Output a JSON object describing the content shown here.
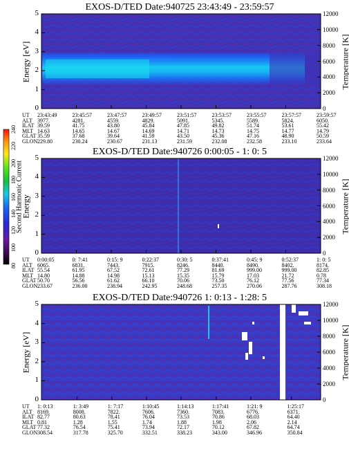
{
  "chart_data": [
    {
      "type": "heatmap",
      "title": "EXOS-D/TED   Date:940725  23:43:49 - 23:59:57",
      "ylabel": "Energy [eV]",
      "y2label": "Temperature [K]",
      "ylim": [
        0,
        5
      ],
      "y2lim": [
        0,
        12000
      ],
      "yticks": [
        "0",
        "1",
        "2",
        "3",
        "4",
        "5"
      ],
      "y2ticks": [
        "0",
        "2000",
        "4000",
        "6000",
        "8000",
        "10000",
        "12000"
      ],
      "ephemeris": {
        "labels": [
          "UT",
          "ALT",
          "ILAT",
          "MLT",
          "GLAT",
          "GLON"
        ],
        "columns": [
          [
            "23:43:49",
            "3977.",
            "39.59",
            "14.63",
            "35.59",
            "229.80"
          ],
          [
            "23:45:57",
            "4281.",
            "41.75",
            "14.65",
            "37.68",
            "230.24"
          ],
          [
            "23:47:57",
            "4559.",
            "43.80",
            "14.67",
            "39.64",
            "230.67"
          ],
          [
            "23:49:57",
            "4829.",
            "45.84",
            "14.69",
            "41.59",
            "231.13"
          ],
          [
            "23:51:57",
            "5091.",
            "47.85",
            "14.71",
            "43.50",
            "231.59"
          ],
          [
            "23:53:57",
            "5345.",
            "49.82",
            "14.73",
            "45.36",
            "232.08"
          ],
          [
            "23:55:57",
            "5589.",
            "51.74",
            "14.75",
            "47.16",
            "232.58"
          ],
          [
            "23:57:57",
            "5824.",
            "53.61",
            "14.77",
            "48.90",
            "233.10"
          ],
          [
            "23:59:57",
            "6050.",
            "55.42",
            "14.79",
            "50.59",
            "233.64"
          ]
        ]
      }
    },
    {
      "type": "heatmap",
      "title": "EXOS-D/TED   Date:940726  0:00:05 - 1: 0: 5",
      "ylabel": "Energy",
      "y2label": "Temperature [K]",
      "ylim": [
        0,
        5
      ],
      "y2lim": [
        0,
        12000
      ],
      "yticks": [
        "0",
        "1",
        "2",
        "3",
        "4",
        "5"
      ],
      "y2ticks": [
        "0",
        "2000",
        "4000",
        "6000",
        "8000",
        "10000",
        "12000"
      ],
      "ephemeris": {
        "labels": [
          "UT",
          "ALT",
          "ILAT",
          "MLT",
          "GLAT",
          "GLON"
        ],
        "columns": [
          [
            "0:00:05",
            "6065.",
            "55.54",
            "14.80",
            "50.70",
            "233.67"
          ],
          [
            "0: 7:41",
            "6831.",
            "61.95",
            "14.88",
            "56.56",
            "236.00"
          ],
          [
            "0:15: 9",
            "7443.",
            "67.52",
            "14.98",
            "61.62",
            "238.94"
          ],
          [
            "0:22:37",
            "7915.",
            "72.61",
            "15.13",
            "66.10",
            "242.95"
          ],
          [
            "0:30: 5",
            "8246.",
            "77.29",
            "15.35",
            "70.06",
            "248.68"
          ],
          [
            "0:37:41",
            "8440.",
            "81.69",
            "15.79",
            "73.50",
            "257.35"
          ],
          [
            "0:45: 9",
            "8490.",
            "999.00",
            "17.03",
            "76.12",
            "270.06"
          ],
          [
            "0:52:37",
            "8402.",
            "999.00",
            "21.72",
            "77.56",
            "287.76"
          ],
          [
            "1: 0: 5",
            "8174.",
            "82.85",
            "0.78",
            "77.34",
            "308.18"
          ]
        ]
      },
      "colorbar": {
        "label": "Second Harmonic Current",
        "ticks": [
          "80",
          "100",
          "120",
          "140",
          "160",
          "180",
          "200",
          "220",
          "240"
        ],
        "range": [
          80,
          240
        ]
      }
    },
    {
      "type": "heatmap",
      "title": "EXOS-D/TED   Date:940726  1: 0:13 - 1:28: 5",
      "ylabel": "Energy [eV]",
      "y2label": "Temperature [K]",
      "ylim": [
        0,
        5
      ],
      "y2lim": [
        0,
        12000
      ],
      "yticks": [
        "0",
        "1",
        "2",
        "3",
        "4",
        "5"
      ],
      "y2ticks": [
        "0",
        "2000",
        "4000",
        "6000",
        "8000",
        "10000",
        "12000"
      ],
      "ephemeris": {
        "labels": [
          "UT",
          "ALT",
          "ILAT",
          "MLT",
          "GLAT",
          "GLON"
        ],
        "columns": [
          [
            "1: 0:13",
            "8169.",
            "82.77",
            "0.81",
            "77.32",
            "308.54"
          ],
          [
            "1: 3:49",
            "8008.",
            "80.63",
            "1.28",
            "76.54",
            "317.78"
          ],
          [
            "1: 7:17",
            "7822.",
            "78.41",
            "1.55",
            "75.41",
            "325.70"
          ],
          [
            "1:10:45",
            "7606.",
            "76.04",
            "1.74",
            "73.94",
            "332.51"
          ],
          [
            "1:14:13",
            "7360.",
            "73.53",
            "1.88",
            "72.17",
            "338.23"
          ],
          [
            "1:17:41",
            "7083.",
            "70.86",
            "1.98",
            "70.12",
            "343.00"
          ],
          [
            "1:21: 9",
            "6776.",
            "68.03",
            "2.06",
            "67.82",
            "346.96"
          ],
          [
            "1:25:17",
            "6371.",
            "64.40",
            "2.14",
            "64.74",
            "350.84"
          ]
        ]
      }
    }
  ]
}
